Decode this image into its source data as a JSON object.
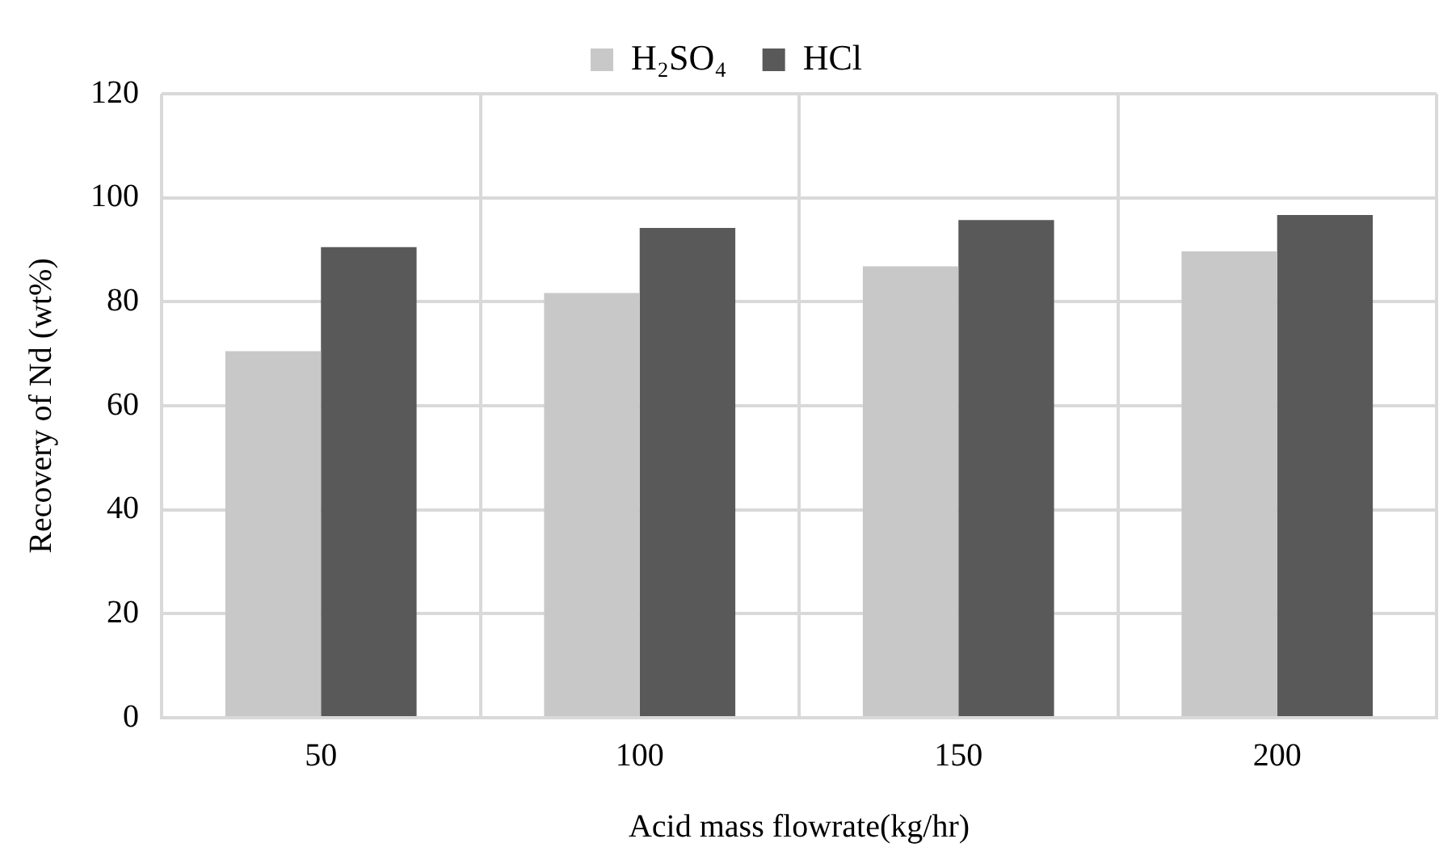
{
  "chart_data": {
    "type": "bar",
    "xlabel": "Acid mass flowrate(kg/hr)",
    "ylabel": "Recovery of Nd (wt%)",
    "categories": [
      "50",
      "100",
      "150",
      "200"
    ],
    "series": [
      {
        "name": "H₂SO₄",
        "color": "#c8c8c8",
        "values": [
          70.5,
          81.7,
          86.8,
          89.7
        ]
      },
      {
        "name": "HCl",
        "color": "#595959",
        "values": [
          90.5,
          94.2,
          95.7,
          96.7
        ]
      }
    ],
    "ylim": [
      0,
      120
    ],
    "yticks": [
      0,
      20,
      40,
      60,
      80,
      100,
      120
    ],
    "grid": true,
    "legend": "top"
  }
}
